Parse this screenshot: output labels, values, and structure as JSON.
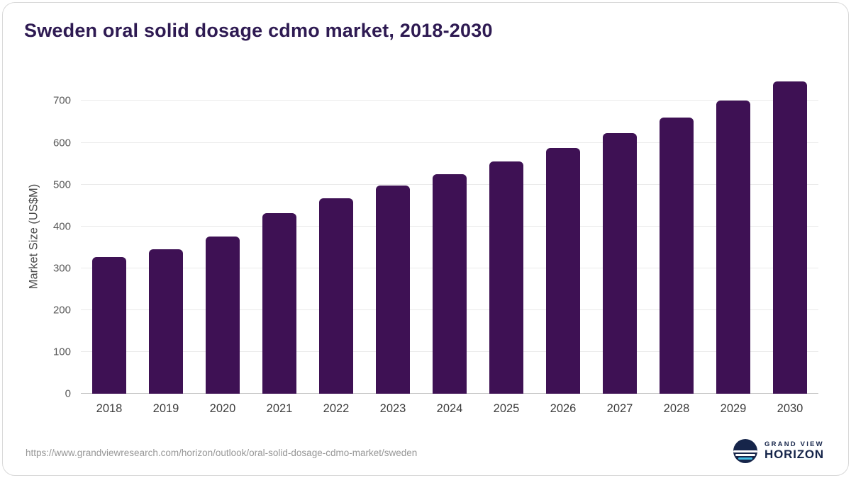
{
  "title": "Sweden oral solid dosage cdmo market, 2018-2030",
  "source_url": "https://www.grandviewresearch.com/horizon/outlook/oral-solid-dosage-cdmo-market/sweden",
  "logo": {
    "top": "GRAND VIEW",
    "bottom": "HORIZON"
  },
  "colors": {
    "accent": "#3e1154",
    "title": "#2e1a52",
    "grid": "#eaeaea",
    "axis_text": "#595959",
    "url_text": "#979797",
    "logo_navy": "#16254a",
    "logo_cyan": "#45bde4"
  },
  "chart_data": {
    "type": "bar",
    "title": "Sweden oral solid dosage cdmo market, 2018-2030",
    "categories": [
      "2018",
      "2019",
      "2020",
      "2021",
      "2022",
      "2023",
      "2024",
      "2025",
      "2026",
      "2027",
      "2028",
      "2029",
      "2030"
    ],
    "values": [
      327,
      345,
      375,
      432,
      468,
      497,
      524,
      555,
      587,
      623,
      660,
      701,
      747
    ],
    "xlabel": "",
    "ylabel": "Market Size (US$M)",
    "ylim": [
      0,
      760
    ],
    "yticks": [
      0,
      100,
      200,
      300,
      400,
      500,
      600,
      700
    ],
    "grid": "horizontal",
    "legend": "none",
    "bar_color": "#3e1154"
  }
}
